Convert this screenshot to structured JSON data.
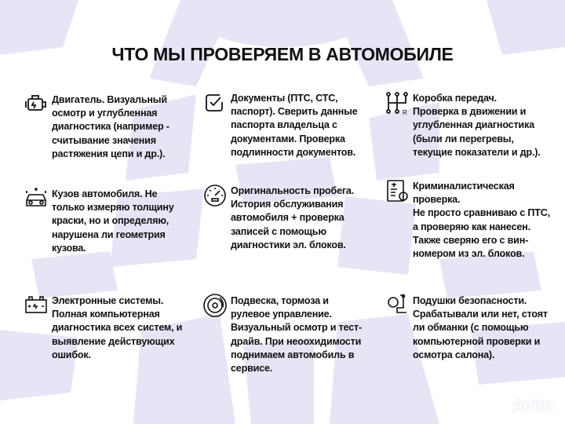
{
  "title": "ЧТО МЫ ПРОВЕРЯЕМ В АВТОМОБИЛЕ",
  "items": [
    {
      "icon": "engine-icon",
      "title": "Двигатель.",
      "text": " Визуальный\nосмотр и углубленная\nдиагностика (например -\nсчитывание значения\nрастяжения цепи и др.)."
    },
    {
      "icon": "checkbox-icon",
      "title": "Документы (ПТС, СТС,\nпаспорт).",
      "text": " Сверить данные\nпаспорта владельца с\nдокументами. Проверка\nподлинности документов."
    },
    {
      "icon": "gearbox-icon",
      "title": "Коробка передач.",
      "text": "\nПроверка в движении и\nуглубленная диагностика\n(были ли перегревы,\nтекущие показатели и др.)."
    },
    {
      "icon": "car-body-icon",
      "title": "Кузов автомобиля.",
      "text": " Не\nтолько измеряю толщину\nкраски, но и определяю,\nнарушена ли геометрия\nкузова."
    },
    {
      "icon": "speedometer-icon",
      "title": "Оригинальность пробега.",
      "text": "\nИстория обслуживания\nавтомобиля + проверка\nзаписей с помощью\nдиагностики эл. блоков."
    },
    {
      "icon": "forensic-document-icon",
      "title": "Криминалистическая\nпроверка.",
      "text": "\nНе просто сравниваю с ПТС,\nа проверяю как нанесен.\nТакже сверяю его с вин-\nномером из эл. блоков."
    },
    {
      "icon": "battery-icon",
      "title": "Электронные системы.",
      "text": "\nПолная компьютерная\nдиагностика всех систем, и\nвыявление действующих\nошибок."
    },
    {
      "icon": "brake-disc-icon",
      "title": "Подвеска, тормоза и\nрулевое управление.",
      "text": "\nВизуальный осмотр и тест-\nдрайв. При неоохидимости\nподнимаем автомобиль в\nсервисе."
    },
    {
      "icon": "airbag-icon",
      "title": "Подушки безопасности.",
      "text": "\nСрабатывали или нет, стоят\nли обманки (с помощью\nкомпьютерной проверки и\nосмотра салона)."
    }
  ],
  "watermark": "Avito",
  "colors": {
    "background_pattern": "#e6e5f6",
    "text": "#111111"
  }
}
